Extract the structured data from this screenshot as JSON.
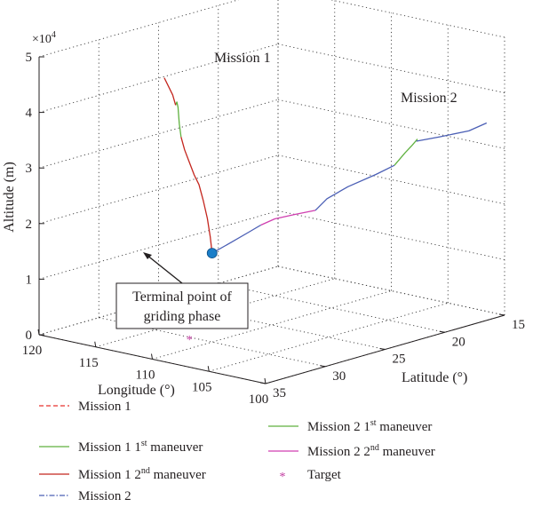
{
  "chart_data": {
    "type": "line",
    "view": "3d",
    "xlabel": "Longitude (°)",
    "ylabel": "Latitude (°)",
    "zlabel": "Altitude (m)",
    "z_multiplier": "×10",
    "z_multiplier_exp": "4",
    "x_ticks": [
      "120",
      "115",
      "110",
      "105",
      "100"
    ],
    "y_ticks": [
      "15",
      "20",
      "25",
      "30",
      "35"
    ],
    "z_ticks": [
      "0",
      "1",
      "2",
      "3",
      "4",
      "5"
    ],
    "xlim": [
      100,
      120
    ],
    "ylim": [
      15,
      35
    ],
    "zlim": [
      0,
      50000
    ],
    "grid": true,
    "annotations": {
      "mission1_label": "Mission 1",
      "mission2_label": "Mission 2",
      "terminal_line1": "Terminal point of",
      "terminal_line2": "griding phase"
    },
    "legend": {
      "placement": "bottom",
      "entries": [
        {
          "pre": "Mission 1",
          "sup": "",
          "post": "",
          "color": "#e8322c",
          "style": "dash"
        },
        {
          "pre": "Mission 1 1",
          "sup": "st",
          "post": " maneuver",
          "color": "#5fb13f",
          "style": "solid"
        },
        {
          "pre": "Mission 1 2",
          "sup": "nd",
          "post": " maneuver",
          "color": "#c4261e",
          "style": "solid"
        },
        {
          "pre": "Mission 2",
          "sup": "",
          "post": "",
          "color": "#4b5fb5",
          "style": "dashdot"
        },
        {
          "pre": "Mission 2 1",
          "sup": "st",
          "post": " maneuver",
          "color": "#5fb13f",
          "style": "solid"
        },
        {
          "pre": "Mission 2 2",
          "sup": "nd",
          "post": " maneuver",
          "color": "#d03fb0",
          "style": "solid"
        },
        {
          "pre": "Target",
          "sup": "",
          "post": "",
          "color": "#c0399f",
          "style": "marker"
        }
      ]
    },
    "target": {
      "lon": 112,
      "lat": 30,
      "alt": 0
    },
    "terminal_point": {
      "lon": 110,
      "lat": 30,
      "alt": 16000
    },
    "series": [
      {
        "name": "Mission 1 2nd maneuver",
        "color": "#c4261e",
        "points": [
          [
            110,
            30,
            16000
          ],
          [
            110,
            30.15,
            19000
          ],
          [
            110,
            30.4,
            22500
          ],
          [
            110,
            30.75,
            26000
          ],
          [
            110,
            31.1,
            29000
          ],
          [
            110,
            31.5,
            31000
          ],
          [
            110,
            31.9,
            33500
          ],
          [
            110,
            32.3,
            36000
          ],
          [
            110,
            32.6,
            38500
          ]
        ]
      },
      {
        "name": "Mission 1 1st maneuver",
        "color": "#5fb13f",
        "points": [
          [
            110,
            32.6,
            38500
          ],
          [
            110,
            32.75,
            41000
          ],
          [
            110,
            32.85,
            44000
          ],
          [
            110,
            32.95,
            45000
          ],
          [
            110,
            33.05,
            44500
          ]
        ]
      },
      {
        "name": "Mission 1 2nd maneuver",
        "color": "#c4261e",
        "points": [
          [
            110,
            33.05,
            44500
          ],
          [
            110,
            33.3,
            46500
          ],
          [
            110,
            33.6,
            48000
          ],
          [
            110,
            34,
            50000
          ]
        ]
      },
      {
        "name": "Mission 2",
        "color": "#4b5fb5",
        "points": [
          [
            110,
            30,
            16000
          ],
          [
            109,
            29.3,
            18000
          ],
          [
            108,
            28.7,
            20000
          ],
          [
            107.6,
            28.2,
            21000
          ]
        ]
      },
      {
        "name": "Mission 2 2nd maneuver",
        "color": "#d03fb0",
        "points": [
          [
            107.6,
            28.2,
            21000
          ],
          [
            107,
            27.6,
            22000
          ],
          [
            106,
            26.9,
            22800
          ],
          [
            105,
            26.1,
            23500
          ]
        ]
      },
      {
        "name": "Mission 2",
        "color": "#4b5fb5",
        "points": [
          [
            105,
            26.1,
            23500
          ],
          [
            104.5,
            25.6,
            25500
          ],
          [
            103.6,
            24.7,
            27500
          ],
          [
            102.4,
            23.5,
            29500
          ],
          [
            101.6,
            22.7,
            31000
          ]
        ]
      },
      {
        "name": "Mission 2 1st maneuver",
        "color": "#5fb13f",
        "points": [
          [
            101.6,
            22.7,
            31000
          ],
          [
            101.3,
            22.1,
            33000
          ],
          [
            101.3,
            21.5,
            34000
          ],
          [
            101.6,
            20.8,
            34500
          ],
          [
            102.3,
            20.2,
            33500
          ]
        ]
      },
      {
        "name": "Mission 2",
        "color": "#4b5fb5",
        "points": [
          [
            102.3,
            20.2,
            33500
          ],
          [
            101.4,
            19.1,
            34000
          ],
          [
            100.2,
            17.8,
            34800
          ],
          [
            100,
            16.5,
            35500
          ]
        ]
      }
    ]
  }
}
